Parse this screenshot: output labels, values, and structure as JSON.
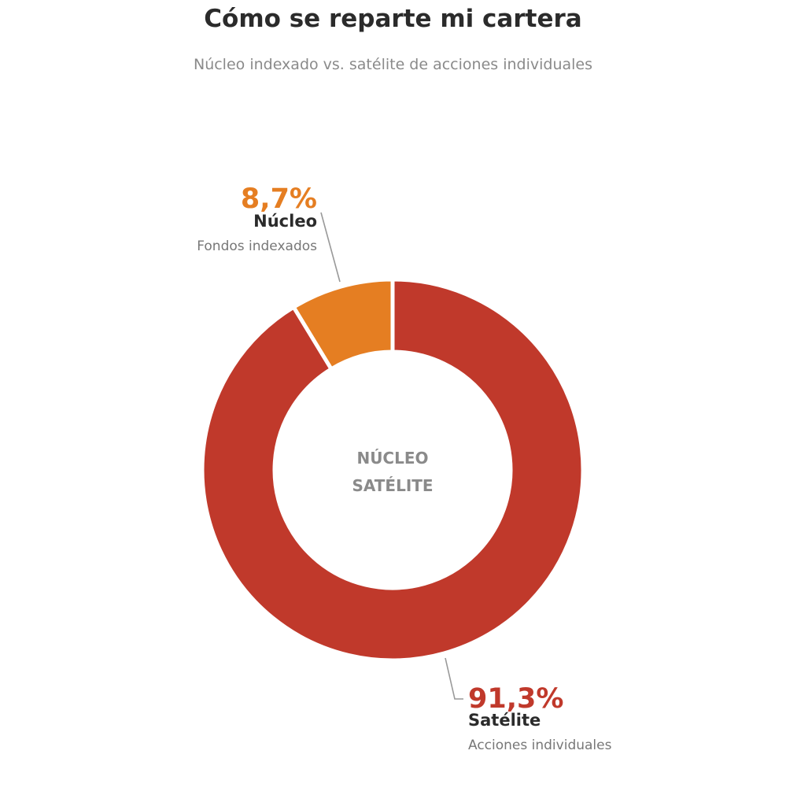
{
  "header": {
    "title": "Cómo se reparte mi cartera",
    "subtitle": "Núcleo indexado vs. satélite de acciones individuales"
  },
  "center_labels": {
    "line1": "NÚCLEO",
    "line2": "SATÉLITE"
  },
  "colors": {
    "nucleo": "#E57E22",
    "satelite": "#C0392B",
    "title": "#2b2b2b",
    "muted": "#8a8a8a",
    "leader": "#999999"
  },
  "chart_data": {
    "type": "pie",
    "donut": true,
    "title": "Cómo se reparte mi cartera",
    "subtitle": "Núcleo indexado vs. satélite de acciones individuales",
    "slices": [
      {
        "key": "nucleo",
        "label": "Núcleo",
        "sublabel": "Fondos indexados",
        "value": 8.7,
        "value_label": "8,7%",
        "color": "#E57E22"
      },
      {
        "key": "satelite",
        "label": "Satélite",
        "sublabel": "Acciones individuales",
        "value": 91.3,
        "value_label": "91,3%",
        "color": "#C0392B"
      }
    ],
    "legend": "none"
  }
}
